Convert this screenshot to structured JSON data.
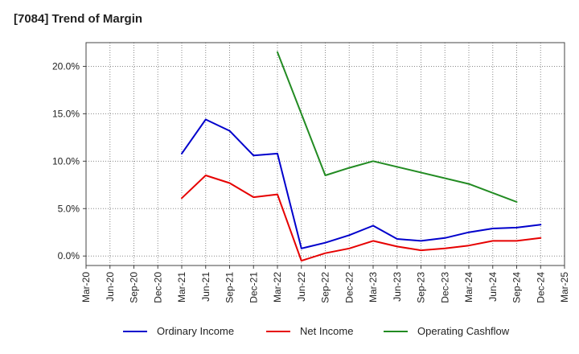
{
  "chart_data": {
    "type": "line",
    "title": "[7084]  Trend of Margin",
    "xlabel": "",
    "ylabel": "",
    "ylim": [
      -1,
      22.5
    ],
    "yticks": [
      0,
      5,
      10,
      15,
      20
    ],
    "ytick_labels": [
      "0.0%",
      "5.0%",
      "10.0%",
      "15.0%",
      "20.0%"
    ],
    "categories": [
      "Mar-20",
      "Jun-20",
      "Sep-20",
      "Dec-20",
      "Mar-21",
      "Jun-21",
      "Sep-21",
      "Dec-21",
      "Mar-22",
      "Jun-22",
      "Sep-22",
      "Dec-22",
      "Mar-23",
      "Jun-23",
      "Sep-23",
      "Dec-23",
      "Mar-24",
      "Jun-24",
      "Sep-24",
      "Dec-24",
      "Mar-25"
    ],
    "grid": true,
    "legend_position": "bottom",
    "series": [
      {
        "name": "Ordinary Income",
        "color": "#0000cc",
        "values": [
          null,
          null,
          null,
          null,
          10.8,
          14.4,
          13.2,
          10.6,
          10.8,
          0.8,
          1.4,
          2.2,
          3.2,
          1.8,
          1.6,
          1.9,
          2.5,
          2.9,
          3.0,
          3.3,
          null
        ]
      },
      {
        "name": "Net Income",
        "color": "#e60000",
        "values": [
          null,
          null,
          null,
          null,
          6.1,
          8.5,
          7.7,
          6.2,
          6.5,
          -0.5,
          0.3,
          0.8,
          1.6,
          1.0,
          0.6,
          0.8,
          1.1,
          1.6,
          1.6,
          1.9,
          null
        ]
      },
      {
        "name": "Operating Cashflow",
        "color": "#228b22",
        "values": [
          null,
          null,
          null,
          null,
          null,
          null,
          null,
          null,
          21.5,
          null,
          8.5,
          9.3,
          10.0,
          null,
          null,
          null,
          7.6,
          null,
          5.7,
          null,
          null
        ]
      }
    ]
  }
}
